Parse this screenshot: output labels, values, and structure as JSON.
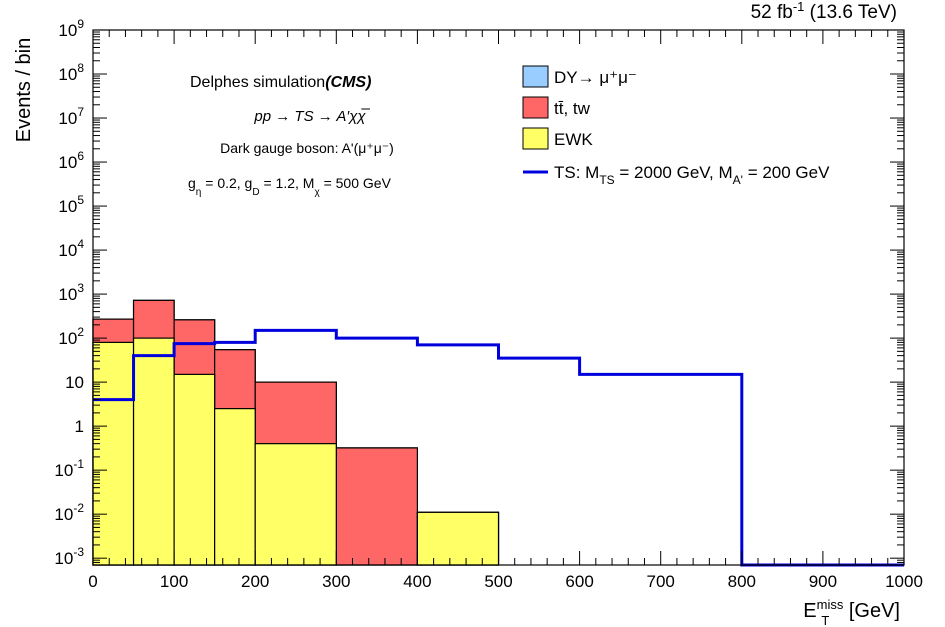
{
  "chart_data": {
    "type": "stacked-histogram",
    "header": {
      "lumi": "52 fb",
      "lumi_exp": "-1",
      "energy": " (13.6 TeV)"
    },
    "xlabel": {
      "base": "E",
      "sub": "T",
      "sup": "miss",
      "unit": " [GeV]"
    },
    "ylabel": "Events / bin",
    "xlim": [
      0,
      1000
    ],
    "ylim": [
      0.0007,
      1000000000
    ],
    "bin_edges": [
      0,
      50,
      100,
      150,
      200,
      300,
      400,
      500,
      600,
      800,
      1000
    ],
    "xticks": [
      0,
      100,
      200,
      300,
      400,
      500,
      600,
      700,
      800,
      900,
      1000
    ],
    "yticks": [
      {
        "value": 0.001,
        "base": "10",
        "exp": "-3"
      },
      {
        "value": 0.01,
        "base": "10",
        "exp": "-2"
      },
      {
        "value": 0.1,
        "base": "10",
        "exp": "-1"
      },
      {
        "value": 1,
        "base": "1",
        "exp": ""
      },
      {
        "value": 10,
        "base": "10",
        "exp": ""
      },
      {
        "value": 100,
        "base": "10",
        "exp": "2"
      },
      {
        "value": 1000,
        "base": "10",
        "exp": "3"
      },
      {
        "value": 10000,
        "base": "10",
        "exp": "4"
      },
      {
        "value": 100000,
        "base": "10",
        "exp": "5"
      },
      {
        "value": 1000000,
        "base": "10",
        "exp": "6"
      },
      {
        "value": 10000000,
        "base": "10",
        "exp": "7"
      },
      {
        "value": 100000000,
        "base": "10",
        "exp": "8"
      },
      {
        "value": 1000000000,
        "base": "10",
        "exp": "9"
      }
    ],
    "stack": [
      {
        "name": "EWK",
        "color": "#ffff66",
        "values": [
          80,
          100,
          15,
          2.5,
          0.4,
          0,
          0.011,
          0,
          0,
          0
        ]
      },
      {
        "name": "tt, tw",
        "color": "#ff6666",
        "values": [
          190,
          620,
          245,
          52,
          9.6,
          0.32,
          0,
          0,
          0,
          0
        ]
      },
      {
        "name": "DY",
        "color": "#99ccff",
        "values": [
          0,
          0,
          0,
          0,
          0,
          0,
          0,
          0,
          0,
          0
        ]
      }
    ],
    "signal": {
      "name": "TS",
      "color": "#0000dd",
      "values": [
        4,
        40,
        75,
        80,
        150,
        100,
        70,
        35,
        15,
        0.0005
      ]
    },
    "legend": {
      "position": "top-right",
      "entries": [
        {
          "kind": "fill",
          "color": "#99ccff",
          "label": "DY→ μ⁺μ⁻"
        },
        {
          "kind": "fill",
          "color": "#ff6666",
          "label": "tt̄, tw"
        },
        {
          "kind": "fill",
          "color": "#ffff66",
          "label": "EWK"
        },
        {
          "kind": "line",
          "color": "#0000dd",
          "label_parts": {
            "a": "TS: M",
            "b": "TS",
            "c": " = 2000 GeV, M",
            "d": "A'",
            "e": " = 200 GeV"
          }
        }
      ]
    },
    "annotations": {
      "sim_prefix": "Delphes simulation",
      "sim_experiment": "(CMS)",
      "process": "pp → TS → A′χχ̅",
      "boson": "Dark gauge boson: A'(μ⁺μ⁻)",
      "couplings": {
        "g": "g",
        "eta": "η",
        "geta_val": " = 0.2, g",
        "D": "D",
        "gD_val": " = 1.2, M",
        "chi": "χ",
        "mchi_val": " = 500 GeV"
      }
    }
  }
}
